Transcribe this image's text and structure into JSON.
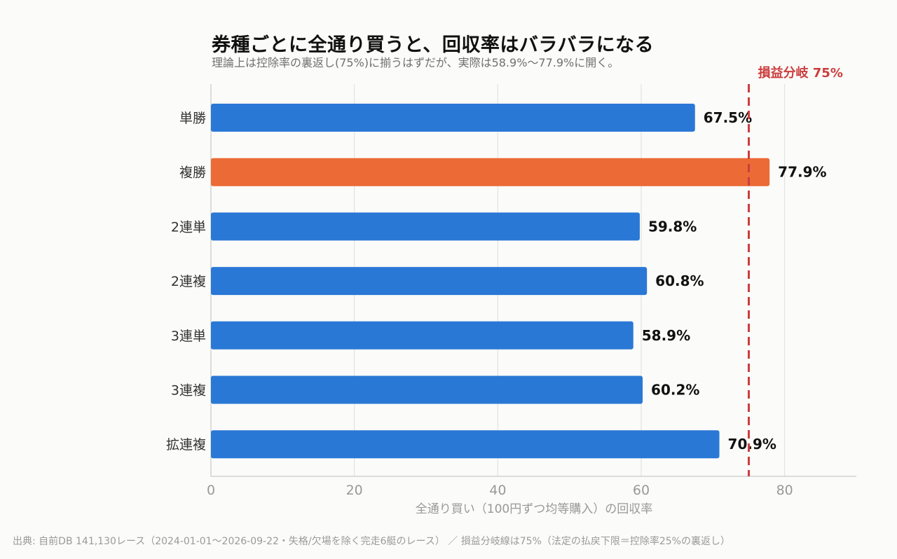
{
  "title": "券種ごとに全通り買うと、回収率はバラバラになる",
  "subtitle": "理論上は控除率の裏返し(75%)に揃うはずだが、実際は58.9%〜77.9%に開く。",
  "source_note": "出典: 自前DB 141,130レース（2024-01-01〜2026-09-22・失格/欠場を除く完走6艇のレース） ／ 損益分岐線は75%（法定の払戻下限＝控除率25%の裏返し）",
  "colors": {
    "bar": "#2a78d6",
    "highlight_bar": "#ec6a35",
    "reference_line": "#cc3d3d",
    "grid": "#dddddd",
    "axis_text": "#999999"
  },
  "chart_data": {
    "type": "bar",
    "orientation": "horizontal",
    "categories": [
      "単勝",
      "複勝",
      "2連単",
      "2連複",
      "3連単",
      "3連複",
      "拡連複"
    ],
    "values": [
      67.5,
      77.9,
      59.8,
      60.8,
      58.9,
      60.2,
      70.9
    ],
    "value_labels": [
      "67.5%",
      "77.9%",
      "59.8%",
      "60.8%",
      "58.9%",
      "60.2%",
      "70.9%"
    ],
    "highlight_category": "複勝",
    "xlabel": "全通り買い（100円ずつ均等購入）の回収率",
    "xlim": [
      0,
      90
    ],
    "xticks": [
      0,
      20,
      40,
      60,
      80
    ],
    "grid": "vertical",
    "reference_line": {
      "value": 75,
      "label": "損益分岐 75%"
    }
  }
}
